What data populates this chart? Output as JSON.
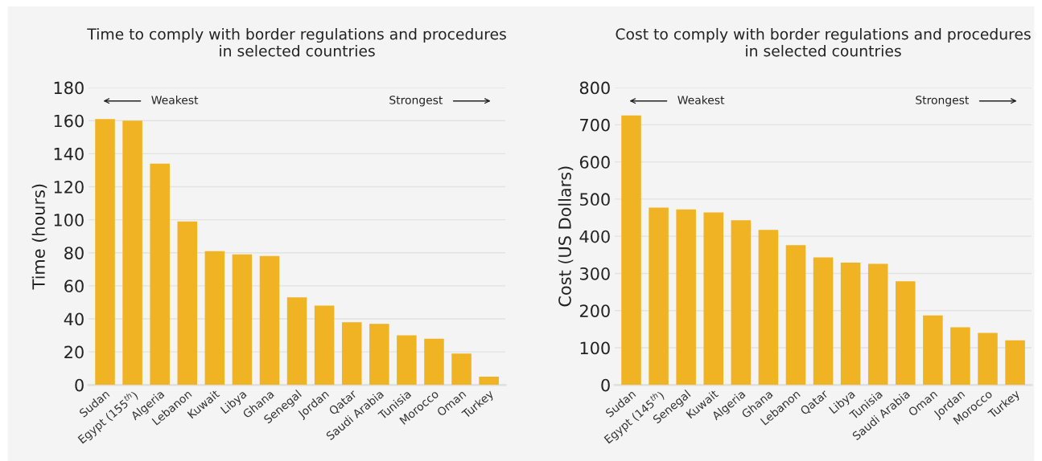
{
  "chart_data": [
    {
      "type": "bar",
      "title": "Time to comply with border regulations and procedures\nin selected countries",
      "ylabel": "Time (hours)",
      "categories": [
        "Sudan",
        "Egypt (155$^{th}$)",
        "Algeria",
        "Lebanon",
        "Kuwait",
        "Libya",
        "Ghana",
        "Senegal",
        "Jordan",
        "Qatar",
        "Saudi Arabia",
        "Tunisia",
        "Morocco",
        "Oman",
        "Turkey"
      ],
      "values": [
        161,
        160,
        134,
        99,
        81,
        79,
        78,
        53,
        48,
        38,
        37,
        30,
        28,
        19,
        5
      ],
      "color": "#f0b323",
      "ylim": [
        0,
        180
      ],
      "yticks": [
        0,
        20,
        40,
        60,
        80,
        100,
        120,
        140,
        160,
        180
      ],
      "grid": "y",
      "annotations": [
        "Weakest",
        "Strongest"
      ]
    },
    {
      "type": "bar",
      "title": "Cost to comply with border regulations and procedures\nin selected countries",
      "ylabel": "Cost (US Dollars)",
      "categories": [
        "Sudan",
        "Egypt (145$^{th}$)",
        "Senegal",
        "Kuwait",
        "Algeria",
        "Ghana",
        "Lebanon",
        "Qatar",
        "Libya",
        "Tunisia",
        "Saudi Arabia",
        "Oman",
        "Jordan",
        "Morocco",
        "Turkey"
      ],
      "values": [
        725,
        477,
        472,
        464,
        443,
        417,
        376,
        343,
        329,
        326,
        279,
        187,
        155,
        140,
        120
      ],
      "color": "#f0b323",
      "ylim": [
        0,
        800
      ],
      "yticks": [
        0,
        100,
        200,
        300,
        400,
        500,
        600,
        700,
        800
      ],
      "grid": "y",
      "annotations": [
        "Weakest",
        "Strongest"
      ]
    }
  ]
}
